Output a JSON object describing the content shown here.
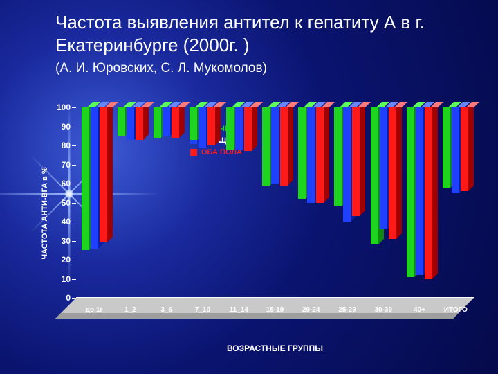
{
  "title_line": "Частота выявления антител к гепатиту А в г. Екатеринбурге (2000г. )",
  "subtitle": "(А. И. Юровских, С. Л. Мукомолов)",
  "chart": {
    "type": "bar-3d-grouped",
    "ylabel": "ЧАСТОТА АНТИ-ВГА в %",
    "xlabel": "ВОЗРАСТНЫЕ ГРУППЫ",
    "ylim": [
      0,
      100
    ],
    "ytick_step": 10,
    "background": "radial #0a1470",
    "floor_color": "#c9c9c9",
    "categories": [
      "до 1г",
      "1_2",
      "3_6",
      "7_10",
      "11_14",
      "15-19",
      "20-24",
      "25-29",
      "30-39",
      "40+",
      "ИТОГО"
    ],
    "series": [
      {
        "name": "МУЖЧИНЫ",
        "color": "#1fd41f",
        "top": "#5bff5b",
        "side": "#0f8a0f",
        "values": [
          75,
          15,
          16,
          17,
          22,
          41,
          48,
          52,
          72,
          89,
          42
        ]
      },
      {
        "name": "ЖЕНЩИНЫ",
        "color": "#2040ff",
        "top": "#6a86ff",
        "side": "#0e1fa0",
        "values": [
          74,
          17,
          15,
          21,
          22,
          40,
          50,
          60,
          64,
          88,
          45
        ]
      },
      {
        "name": "ОБА ПОЛА",
        "color": "#ff1a1a",
        "top": "#ff7a7a",
        "side": "#a00000",
        "values": [
          71,
          17,
          16,
          20,
          23,
          41,
          50,
          57,
          69,
          90,
          44
        ]
      }
    ],
    "tick_font_size": 12,
    "label_font_size": 11,
    "cat_font_size": 10
  },
  "legend_title": null
}
